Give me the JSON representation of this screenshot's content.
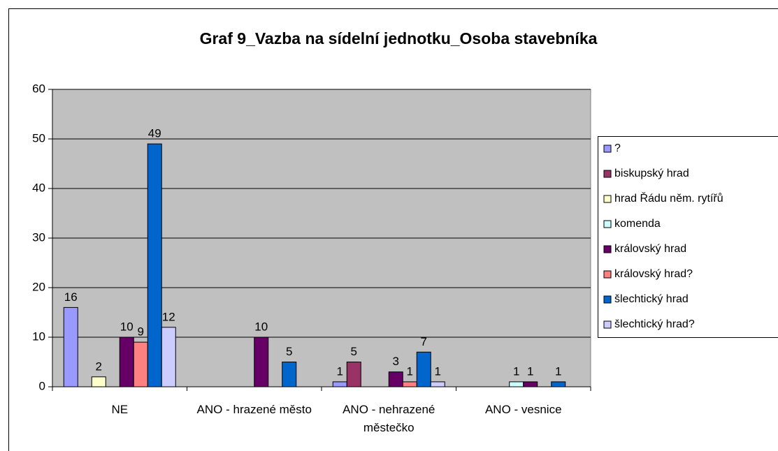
{
  "chart_data": {
    "type": "bar",
    "title": "Graf 9_Vazba na sídelní jednotku_Osoba stavebníka",
    "categories": [
      "NE",
      "ANO - hrazené město",
      "ANO - nehrazené městečko",
      "ANO - vesnice"
    ],
    "series": [
      {
        "name": "?",
        "color": "#9999ff",
        "values": [
          16,
          null,
          1,
          null
        ]
      },
      {
        "name": "biskupský hrad",
        "color": "#993366",
        "values": [
          null,
          null,
          5,
          null
        ]
      },
      {
        "name": "hrad Řádu něm. rytířů",
        "color": "#ffffcc",
        "values": [
          2,
          null,
          null,
          null
        ]
      },
      {
        "name": "komenda",
        "color": "#ccffff",
        "values": [
          null,
          null,
          null,
          1
        ]
      },
      {
        "name": "královský hrad",
        "color": "#660066",
        "values": [
          10,
          10,
          3,
          1
        ]
      },
      {
        "name": "královský hrad?",
        "color": "#ff8080",
        "values": [
          9,
          null,
          1,
          null
        ]
      },
      {
        "name": "šlechtický hrad",
        "color": "#0066cc",
        "values": [
          49,
          5,
          7,
          1
        ]
      },
      {
        "name": "šlechtický hrad?",
        "color": "#ccccff",
        "values": [
          12,
          null,
          1,
          null
        ]
      }
    ],
    "ylim": [
      0,
      60
    ],
    "yticks": [
      0,
      10,
      20,
      30,
      40,
      50,
      60
    ],
    "grid": true,
    "plot_background": "#c0c0c0",
    "legend": "right"
  }
}
